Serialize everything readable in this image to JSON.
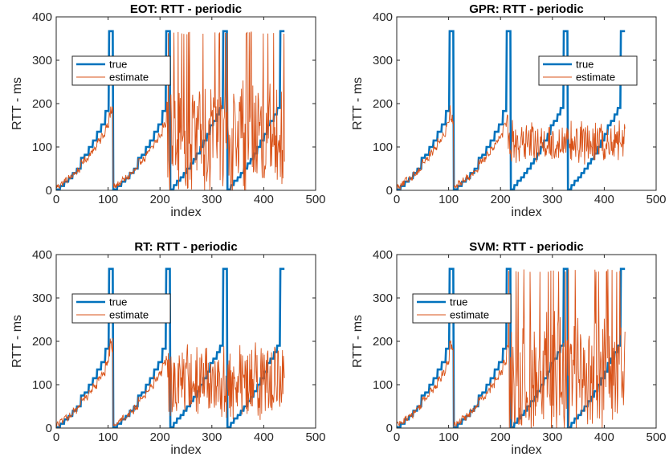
{
  "colors": {
    "true_line": "#0072BD",
    "estimate_line": "#D95319",
    "axes": "#262626"
  },
  "chart_data": [
    {
      "type": "line",
      "title": "EOT: RTT - periodic",
      "xlabel": "index",
      "ylabel": "RTT - ms",
      "xlim": [
        0,
        500
      ],
      "ylim": [
        0,
        400
      ],
      "xticks": [
        "0",
        "100",
        "200",
        "300",
        "400",
        "500"
      ],
      "yticks": [
        "0",
        "100",
        "200",
        "300",
        "400"
      ],
      "legend_position": "upper-left-inside",
      "estimate_profile": {
        "noise_from": 215,
        "noise_amp": 150,
        "cap_high": true
      },
      "series": [
        {
          "name": "true",
          "role": "true"
        },
        {
          "name": "estimate",
          "role": "estimate"
        }
      ]
    },
    {
      "type": "line",
      "title": "GPR: RTT - periodic",
      "xlabel": "index",
      "ylabel": "RTT - ms",
      "xlim": [
        0,
        500
      ],
      "ylim": [
        0,
        400
      ],
      "xticks": [
        "0",
        "100",
        "200",
        "300",
        "400",
        "500"
      ],
      "yticks": [
        "0",
        "100",
        "200",
        "300",
        "400"
      ],
      "legend_position": "upper-right-inside",
      "estimate_profile": {
        "noise_from": 215,
        "noise_amp": 55,
        "cap_high": false
      },
      "series": [
        {
          "name": "true",
          "role": "true"
        },
        {
          "name": "estimate",
          "role": "estimate"
        }
      ]
    },
    {
      "type": "line",
      "title": "RT: RTT - periodic",
      "xlabel": "index",
      "ylabel": "RTT - ms",
      "xlim": [
        0,
        500
      ],
      "ylim": [
        0,
        400
      ],
      "xticks": [
        "0",
        "100",
        "200",
        "300",
        "400",
        "500"
      ],
      "yticks": [
        "0",
        "100",
        "200",
        "300",
        "400"
      ],
      "legend_position": "upper-left-inside",
      "estimate_profile": {
        "noise_from": 215,
        "noise_amp": 95,
        "cap_high": false
      },
      "series": [
        {
          "name": "true",
          "role": "true"
        },
        {
          "name": "estimate",
          "role": "estimate"
        }
      ]
    },
    {
      "type": "line",
      "title": "SVM: RTT - periodic",
      "xlabel": "index",
      "ylabel": "RTT - ms",
      "xlim": [
        0,
        500
      ],
      "ylim": [
        0,
        400
      ],
      "xticks": [
        "0",
        "100",
        "200",
        "300",
        "400",
        "500"
      ],
      "yticks": [
        "0",
        "100",
        "200",
        "300",
        "400"
      ],
      "legend_position": "upper-left-inside",
      "estimate_profile": {
        "noise_from": 215,
        "noise_amp": 160,
        "cap_high": true
      },
      "series": [
        {
          "name": "true",
          "role": "true"
        },
        {
          "name": "estimate",
          "role": "estimate"
        }
      ]
    }
  ]
}
